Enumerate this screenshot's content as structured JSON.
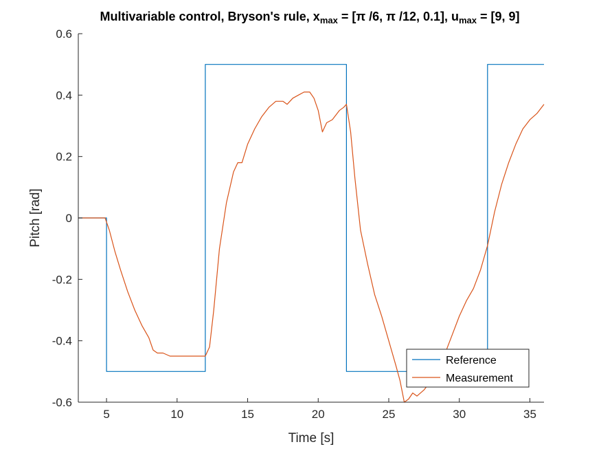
{
  "chart_data": {
    "type": "line",
    "title_parts": {
      "lead": "Multivariable control, Bryson's rule, x",
      "sub1": "max",
      "mid": " = [π /6, π /12, 0.1], u",
      "sub2": "max",
      "tail": " = [9, 9]"
    },
    "xlabel": "Time [s]",
    "ylabel": "Pitch [rad]",
    "xlim": [
      3,
      36
    ],
    "ylim": [
      -0.6,
      0.6
    ],
    "xticks": [
      5,
      10,
      15,
      20,
      25,
      30,
      35
    ],
    "xtick_labels": [
      "5",
      "10",
      "15",
      "20",
      "25",
      "30",
      "35"
    ],
    "yticks": [
      -0.6,
      -0.4,
      -0.2,
      0,
      0.2,
      0.4,
      0.6
    ],
    "ytick_labels": [
      "-0.6",
      "-0.4",
      "-0.2",
      "0",
      "0.2",
      "0.4",
      "0.6"
    ],
    "grid": false,
    "legend_position": "bottom-right",
    "series": [
      {
        "name": "Reference",
        "color": "#0072BD",
        "x": [
          3,
          5,
          5,
          12,
          12,
          22,
          22,
          32,
          32,
          36
        ],
        "y": [
          0,
          0,
          -0.5,
          -0.5,
          0.5,
          0.5,
          -0.5,
          -0.5,
          0.5,
          0.5
        ]
      },
      {
        "name": "Measurement",
        "color": "#D95319",
        "x": [
          3,
          4.0,
          4.9,
          5.2,
          5.6,
          6.0,
          6.5,
          7.0,
          7.5,
          8.0,
          8.3,
          8.6,
          9.0,
          9.5,
          10.0,
          10.5,
          11.0,
          11.5,
          12.0,
          12.3,
          12.6,
          13.0,
          13.5,
          14.0,
          14.3,
          14.6,
          15.0,
          15.5,
          16.0,
          16.5,
          17.0,
          17.5,
          17.8,
          18.2,
          18.6,
          19.0,
          19.4,
          19.7,
          20.0,
          20.3,
          20.6,
          21.0,
          21.5,
          21.8,
          22.0,
          22.3,
          22.6,
          23.0,
          23.5,
          24.0,
          24.5,
          25.0,
          25.5,
          25.8,
          26.1,
          26.4,
          26.7,
          27.0,
          27.5,
          28.0,
          28.5,
          29.0,
          29.5,
          30.0,
          30.5,
          31.0,
          31.5,
          32.0,
          32.5,
          33.0,
          33.5,
          34.0,
          34.5,
          35.0,
          35.5,
          36.0
        ],
        "y": [
          0,
          0,
          0,
          -0.04,
          -0.11,
          -0.17,
          -0.24,
          -0.3,
          -0.35,
          -0.39,
          -0.43,
          -0.44,
          -0.44,
          -0.45,
          -0.45,
          -0.45,
          -0.45,
          -0.45,
          -0.45,
          -0.42,
          -0.3,
          -0.1,
          0.05,
          0.15,
          0.18,
          0.18,
          0.24,
          0.29,
          0.33,
          0.36,
          0.38,
          0.38,
          0.37,
          0.39,
          0.4,
          0.41,
          0.41,
          0.39,
          0.35,
          0.28,
          0.31,
          0.32,
          0.35,
          0.36,
          0.37,
          0.28,
          0.13,
          -0.04,
          -0.15,
          -0.25,
          -0.32,
          -0.4,
          -0.48,
          -0.53,
          -0.6,
          -0.59,
          -0.57,
          -0.58,
          -0.56,
          -0.53,
          -0.48,
          -0.44,
          -0.38,
          -0.32,
          -0.27,
          -0.23,
          -0.17,
          -0.09,
          0.02,
          0.11,
          0.18,
          0.24,
          0.29,
          0.32,
          0.34,
          0.37
        ]
      }
    ]
  }
}
